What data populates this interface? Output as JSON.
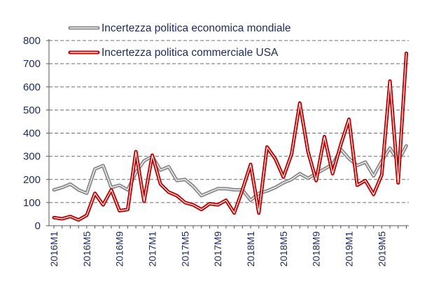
{
  "chart_data": {
    "type": "line",
    "title": "",
    "xlabel": "",
    "ylabel": "",
    "ylim": [
      0,
      800
    ],
    "yticks": [
      0,
      100,
      200,
      300,
      400,
      500,
      600,
      700,
      800
    ],
    "grid": true,
    "legend_position": "top-left",
    "x": [
      "2016M1",
      "2016M2",
      "2016M3",
      "2016M4",
      "2016M5",
      "2016M6",
      "2016M7",
      "2016M8",
      "2016M9",
      "2016M10",
      "2016M11",
      "2016M12",
      "2017M1",
      "2017M2",
      "2017M3",
      "2017M4",
      "2017M5",
      "2017M6",
      "2017M7",
      "2017M8",
      "2017M9",
      "2017M10",
      "2017M11",
      "2017M12",
      "2018M1",
      "2018M2",
      "2018M3",
      "2018M4",
      "2018M5",
      "2018M6",
      "2018M7",
      "2018M8",
      "2018M9",
      "2018M10",
      "2018M11",
      "2018M12",
      "2019M1",
      "2019M2",
      "2019M3",
      "2019M4",
      "2019M5",
      "2019M6",
      "2019M7",
      "2019M8"
    ],
    "x_tick_labels": [
      "2016M1",
      "2016M5",
      "2016M9",
      "2017M1",
      "2017M5",
      "2017M9",
      "2018M1",
      "2018M5",
      "2018M9",
      "2019M1",
      "2019M5"
    ],
    "series": [
      {
        "name": "Incertezza politica economica mondiale",
        "color": "#8c8c8c",
        "values": [
          155,
          165,
          180,
          155,
          140,
          245,
          260,
          165,
          175,
          155,
          230,
          280,
          300,
          240,
          255,
          195,
          200,
          170,
          130,
          145,
          160,
          160,
          155,
          155,
          110,
          140,
          150,
          165,
          185,
          200,
          225,
          205,
          225,
          245,
          265,
          330,
          290,
          260,
          275,
          215,
          280,
          335,
          280,
          345
        ]
      },
      {
        "name": "Incertezza politica commerciale USA",
        "color": "#c00000",
        "values": [
          35,
          30,
          40,
          25,
          45,
          140,
          90,
          155,
          65,
          70,
          320,
          105,
          305,
          180,
          145,
          130,
          100,
          90,
          70,
          95,
          90,
          110,
          55,
          155,
          265,
          55,
          340,
          290,
          210,
          310,
          530,
          320,
          195,
          385,
          225,
          350,
          460,
          175,
          195,
          135,
          220,
          625,
          185,
          745
        ]
      }
    ]
  }
}
